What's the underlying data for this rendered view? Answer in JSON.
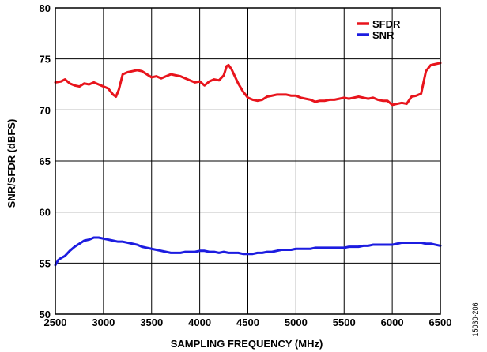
{
  "figure_id": "15030-206",
  "chart_data": {
    "type": "line",
    "xlabel": "SAMPLING FREQUENCY (MHz)",
    "ylabel": "SNR/SFDR (dBFS)",
    "xlim": [
      2500,
      6500
    ],
    "ylim": [
      50,
      80
    ],
    "x_ticks": [
      2500,
      3000,
      3500,
      4000,
      4500,
      5000,
      5500,
      6000,
      6500
    ],
    "y_ticks": [
      50,
      55,
      60,
      65,
      70,
      75,
      80
    ],
    "grid": true,
    "legend_position": "top-right",
    "series": [
      {
        "name": "SFDR",
        "color": "#e8141c",
        "x": [
          2500,
          2560,
          2600,
          2650,
          2700,
          2750,
          2800,
          2850,
          2900,
          2950,
          3000,
          3050,
          3100,
          3130,
          3160,
          3200,
          3250,
          3300,
          3350,
          3400,
          3450,
          3500,
          3550,
          3600,
          3650,
          3700,
          3750,
          3800,
          3850,
          3900,
          3950,
          4000,
          4050,
          4100,
          4150,
          4200,
          4250,
          4280,
          4300,
          4330,
          4360,
          4400,
          4450,
          4500,
          4550,
          4600,
          4650,
          4700,
          4750,
          4800,
          4850,
          4900,
          4950,
          5000,
          5050,
          5100,
          5150,
          5200,
          5250,
          5300,
          5350,
          5400,
          5450,
          5500,
          5550,
          5600,
          5650,
          5700,
          5750,
          5800,
          5850,
          5900,
          5950,
          6000,
          6050,
          6100,
          6150,
          6200,
          6250,
          6300,
          6350,
          6400,
          6450,
          6500
        ],
        "y": [
          72.7,
          72.8,
          73.0,
          72.6,
          72.4,
          72.3,
          72.6,
          72.5,
          72.7,
          72.5,
          72.3,
          72.1,
          71.5,
          71.3,
          72.0,
          73.5,
          73.7,
          73.8,
          73.9,
          73.8,
          73.5,
          73.2,
          73.3,
          73.1,
          73.3,
          73.5,
          73.4,
          73.3,
          73.1,
          72.9,
          72.7,
          72.8,
          72.4,
          72.8,
          73.0,
          72.9,
          73.4,
          74.3,
          74.4,
          74.0,
          73.4,
          72.6,
          71.8,
          71.2,
          71.0,
          70.9,
          71.0,
          71.3,
          71.4,
          71.5,
          71.5,
          71.5,
          71.4,
          71.4,
          71.2,
          71.1,
          71.0,
          70.8,
          70.9,
          70.9,
          71.0,
          71.0,
          71.1,
          71.2,
          71.1,
          71.2,
          71.3,
          71.2,
          71.1,
          71.2,
          71.0,
          70.9,
          70.9,
          70.5,
          70.6,
          70.7,
          70.6,
          71.3,
          71.4,
          71.6,
          73.8,
          74.4,
          74.5,
          74.6
        ]
      },
      {
        "name": "SNR",
        "color": "#1c1ce0",
        "x": [
          2500,
          2530,
          2560,
          2600,
          2650,
          2700,
          2750,
          2800,
          2850,
          2900,
          2950,
          3000,
          3050,
          3100,
          3150,
          3200,
          3250,
          3300,
          3350,
          3400,
          3450,
          3500,
          3550,
          3600,
          3650,
          3700,
          3750,
          3800,
          3850,
          3900,
          3950,
          4000,
          4050,
          4100,
          4150,
          4200,
          4250,
          4300,
          4350,
          4400,
          4450,
          4500,
          4550,
          4600,
          4650,
          4700,
          4750,
          4800,
          4850,
          4900,
          4950,
          5000,
          5050,
          5100,
          5150,
          5200,
          5250,
          5300,
          5350,
          5400,
          5450,
          5500,
          5550,
          5600,
          5650,
          5700,
          5750,
          5800,
          5850,
          5900,
          5950,
          6000,
          6050,
          6100,
          6150,
          6200,
          6250,
          6300,
          6350,
          6400,
          6450,
          6500
        ],
        "y": [
          54.8,
          55.3,
          55.5,
          55.7,
          56.2,
          56.6,
          56.9,
          57.2,
          57.3,
          57.5,
          57.5,
          57.4,
          57.3,
          57.2,
          57.1,
          57.1,
          57.0,
          56.9,
          56.8,
          56.6,
          56.5,
          56.4,
          56.3,
          56.2,
          56.1,
          56.0,
          56.0,
          56.0,
          56.1,
          56.1,
          56.1,
          56.2,
          56.2,
          56.1,
          56.1,
          56.0,
          56.1,
          56.0,
          56.0,
          56.0,
          55.9,
          55.9,
          55.9,
          56.0,
          56.0,
          56.1,
          56.1,
          56.2,
          56.3,
          56.3,
          56.3,
          56.4,
          56.4,
          56.4,
          56.4,
          56.5,
          56.5,
          56.5,
          56.5,
          56.5,
          56.5,
          56.5,
          56.6,
          56.6,
          56.6,
          56.7,
          56.7,
          56.8,
          56.8,
          56.8,
          56.8,
          56.8,
          56.9,
          57.0,
          57.0,
          57.0,
          57.0,
          57.0,
          56.9,
          56.9,
          56.8,
          56.7
        ]
      }
    ]
  }
}
